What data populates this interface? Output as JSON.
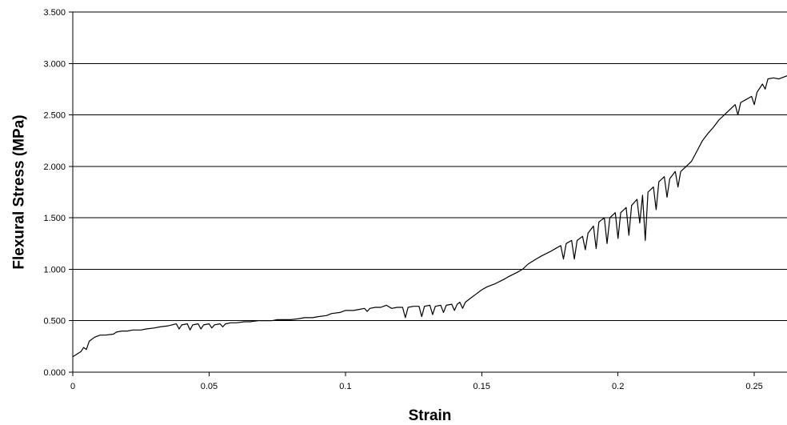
{
  "chart_data": {
    "type": "line",
    "title": "",
    "xlabel": "Strain",
    "ylabel": "Flexural Stress (MPa)",
    "xlim": [
      0,
      0.262
    ],
    "ylim": [
      0,
      3.5
    ],
    "grid": "horizontal",
    "legend": "none",
    "x_ticks": [
      {
        "value": 0,
        "label": "0"
      },
      {
        "value": 0.05,
        "label": "0.05"
      },
      {
        "value": 0.1,
        "label": "0.1"
      },
      {
        "value": 0.15,
        "label": "0.15"
      },
      {
        "value": 0.2,
        "label": "0.2"
      },
      {
        "value": 0.25,
        "label": "0.25"
      }
    ],
    "y_ticks": [
      {
        "value": 0,
        "label": "0.000"
      },
      {
        "value": 0.5,
        "label": "0.500"
      },
      {
        "value": 1.0,
        "label": "1.000"
      },
      {
        "value": 1.5,
        "label": "1.500"
      },
      {
        "value": 2.0,
        "label": "2.000"
      },
      {
        "value": 2.5,
        "label": "2.500"
      },
      {
        "value": 3.0,
        "label": "3.000"
      },
      {
        "value": 3.5,
        "label": "3.500"
      }
    ],
    "series": [
      {
        "color": "#000000",
        "points": [
          [
            0,
            0.15
          ],
          [
            0.003,
            0.2
          ],
          [
            0.004,
            0.24
          ],
          [
            0.005,
            0.22
          ],
          [
            0.006,
            0.3
          ],
          [
            0.008,
            0.34
          ],
          [
            0.01,
            0.36
          ],
          [
            0.012,
            0.36
          ],
          [
            0.015,
            0.37
          ],
          [
            0.016,
            0.39
          ],
          [
            0.018,
            0.4
          ],
          [
            0.02,
            0.4
          ],
          [
            0.022,
            0.41
          ],
          [
            0.025,
            0.41
          ],
          [
            0.027,
            0.42
          ],
          [
            0.03,
            0.43
          ],
          [
            0.032,
            0.44
          ],
          [
            0.035,
            0.45
          ],
          [
            0.038,
            0.47
          ],
          [
            0.039,
            0.42
          ],
          [
            0.04,
            0.46
          ],
          [
            0.042,
            0.47
          ],
          [
            0.043,
            0.41
          ],
          [
            0.044,
            0.46
          ],
          [
            0.046,
            0.47
          ],
          [
            0.047,
            0.42
          ],
          [
            0.048,
            0.46
          ],
          [
            0.05,
            0.47
          ],
          [
            0.051,
            0.43
          ],
          [
            0.052,
            0.46
          ],
          [
            0.054,
            0.47
          ],
          [
            0.055,
            0.44
          ],
          [
            0.056,
            0.47
          ],
          [
            0.058,
            0.48
          ],
          [
            0.06,
            0.48
          ],
          [
            0.063,
            0.49
          ],
          [
            0.065,
            0.49
          ],
          [
            0.068,
            0.5
          ],
          [
            0.07,
            0.5
          ],
          [
            0.073,
            0.5
          ],
          [
            0.075,
            0.51
          ],
          [
            0.078,
            0.51
          ],
          [
            0.08,
            0.51
          ],
          [
            0.083,
            0.52
          ],
          [
            0.085,
            0.53
          ],
          [
            0.088,
            0.53
          ],
          [
            0.09,
            0.54
          ],
          [
            0.093,
            0.55
          ],
          [
            0.095,
            0.57
          ],
          [
            0.098,
            0.58
          ],
          [
            0.1,
            0.6
          ],
          [
            0.103,
            0.6
          ],
          [
            0.105,
            0.61
          ],
          [
            0.107,
            0.62
          ],
          [
            0.108,
            0.59
          ],
          [
            0.109,
            0.62
          ],
          [
            0.111,
            0.63
          ],
          [
            0.113,
            0.63
          ],
          [
            0.115,
            0.65
          ],
          [
            0.117,
            0.62
          ],
          [
            0.119,
            0.63
          ],
          [
            0.121,
            0.63
          ],
          [
            0.122,
            0.53
          ],
          [
            0.123,
            0.63
          ],
          [
            0.125,
            0.64
          ],
          [
            0.127,
            0.64
          ],
          [
            0.128,
            0.54
          ],
          [
            0.129,
            0.64
          ],
          [
            0.131,
            0.65
          ],
          [
            0.132,
            0.56
          ],
          [
            0.133,
            0.64
          ],
          [
            0.135,
            0.65
          ],
          [
            0.136,
            0.58
          ],
          [
            0.137,
            0.65
          ],
          [
            0.139,
            0.66
          ],
          [
            0.14,
            0.6
          ],
          [
            0.141,
            0.66
          ],
          [
            0.142,
            0.68
          ],
          [
            0.143,
            0.62
          ],
          [
            0.144,
            0.68
          ],
          [
            0.146,
            0.72
          ],
          [
            0.148,
            0.76
          ],
          [
            0.15,
            0.8
          ],
          [
            0.152,
            0.83
          ],
          [
            0.155,
            0.86
          ],
          [
            0.158,
            0.9
          ],
          [
            0.16,
            0.93
          ],
          [
            0.163,
            0.97
          ],
          [
            0.165,
            1.0
          ],
          [
            0.167,
            1.05
          ],
          [
            0.17,
            1.1
          ],
          [
            0.172,
            1.13
          ],
          [
            0.175,
            1.17
          ],
          [
            0.177,
            1.2
          ],
          [
            0.179,
            1.23
          ],
          [
            0.18,
            1.1
          ],
          [
            0.181,
            1.25
          ],
          [
            0.183,
            1.28
          ],
          [
            0.184,
            1.1
          ],
          [
            0.185,
            1.28
          ],
          [
            0.187,
            1.32
          ],
          [
            0.188,
            1.19
          ],
          [
            0.189,
            1.35
          ],
          [
            0.191,
            1.42
          ],
          [
            0.192,
            1.2
          ],
          [
            0.193,
            1.46
          ],
          [
            0.195,
            1.5
          ],
          [
            0.196,
            1.25
          ],
          [
            0.197,
            1.5
          ],
          [
            0.199,
            1.55
          ],
          [
            0.2,
            1.3
          ],
          [
            0.201,
            1.55
          ],
          [
            0.203,
            1.6
          ],
          [
            0.204,
            1.33
          ],
          [
            0.205,
            1.62
          ],
          [
            0.207,
            1.68
          ],
          [
            0.208,
            1.45
          ],
          [
            0.209,
            1.72
          ],
          [
            0.21,
            1.28
          ],
          [
            0.211,
            1.75
          ],
          [
            0.213,
            1.8
          ],
          [
            0.214,
            1.58
          ],
          [
            0.215,
            1.85
          ],
          [
            0.217,
            1.9
          ],
          [
            0.218,
            1.7
          ],
          [
            0.219,
            1.88
          ],
          [
            0.221,
            1.95
          ],
          [
            0.222,
            1.8
          ],
          [
            0.223,
            1.95
          ],
          [
            0.225,
            2.0
          ],
          [
            0.227,
            2.05
          ],
          [
            0.229,
            2.15
          ],
          [
            0.231,
            2.25
          ],
          [
            0.233,
            2.32
          ],
          [
            0.235,
            2.38
          ],
          [
            0.237,
            2.45
          ],
          [
            0.239,
            2.5
          ],
          [
            0.241,
            2.55
          ],
          [
            0.243,
            2.6
          ],
          [
            0.244,
            2.5
          ],
          [
            0.245,
            2.62
          ],
          [
            0.247,
            2.65
          ],
          [
            0.249,
            2.68
          ],
          [
            0.25,
            2.6
          ],
          [
            0.251,
            2.72
          ],
          [
            0.253,
            2.8
          ],
          [
            0.254,
            2.75
          ],
          [
            0.255,
            2.85
          ],
          [
            0.257,
            2.86
          ],
          [
            0.259,
            2.85
          ],
          [
            0.262,
            2.88
          ]
        ]
      }
    ]
  }
}
